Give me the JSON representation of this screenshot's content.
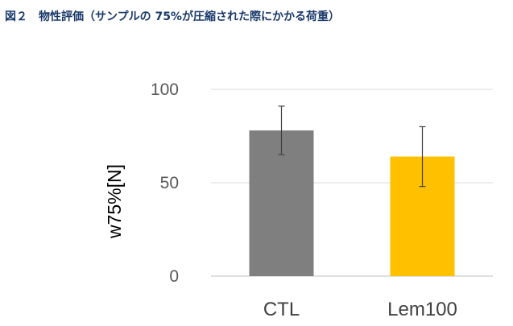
{
  "figure": {
    "caption": "図２　物性評価（サンプルの 75%が圧縮された際にかかる荷重）"
  },
  "chart_data": {
    "type": "bar",
    "categories": [
      "CTL",
      "Lem100"
    ],
    "values": [
      78,
      64
    ],
    "error": [
      13,
      16
    ],
    "colors": [
      "#7f7f7f",
      "#ffc000"
    ],
    "ylabel": "w75%[N]",
    "xlabel": "",
    "ylim": [
      0,
      100
    ],
    "yticks": [
      0,
      50,
      100
    ],
    "grid": true,
    "legend": "none"
  }
}
